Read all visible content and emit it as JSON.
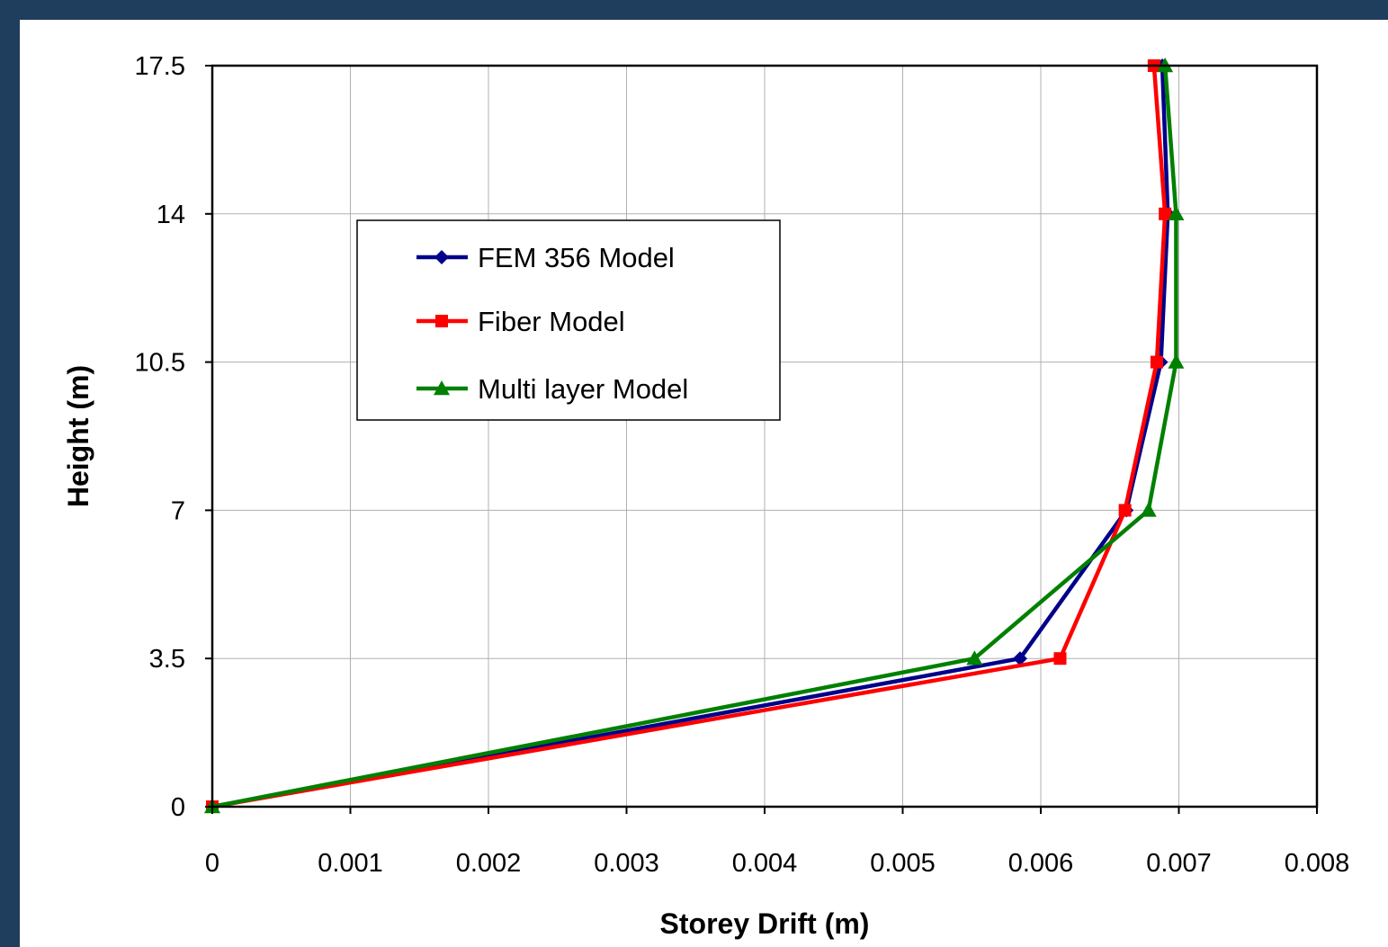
{
  "colors": {
    "background_border": "#1f3d5c",
    "plot_background": "#ffffff",
    "grid": "#b0b0b0",
    "axis": "#000000"
  },
  "chart_data": {
    "type": "line",
    "title": "",
    "xlabel": "Storey Drift (m)",
    "ylabel": "Height (m)",
    "xlim": [
      0,
      0.008
    ],
    "ylim": [
      0,
      17.5
    ],
    "x_ticks": [
      "0",
      "0.001",
      "0.002",
      "0.003",
      "0.004",
      "0.005",
      "0.006",
      "0.007",
      "0.008"
    ],
    "y_ticks": [
      "0",
      "3.5",
      "7",
      "10.5",
      "14",
      "17.5"
    ],
    "grid": true,
    "legend_position": "upper-left inside plot",
    "series": [
      {
        "name": "FEM 356 Model",
        "color": "#00008b",
        "marker": "diamond",
        "points": [
          [
            0,
            0
          ],
          [
            0.00585,
            3.5
          ],
          [
            0.00662,
            7
          ],
          [
            0.00687,
            10.5
          ],
          [
            0.00692,
            14
          ],
          [
            0.00688,
            17.5
          ]
        ]
      },
      {
        "name": "Fiber Model",
        "color": "#ff0000",
        "marker": "square",
        "points": [
          [
            0,
            0
          ],
          [
            0.00614,
            3.5
          ],
          [
            0.00661,
            7
          ],
          [
            0.00684,
            10.5
          ],
          [
            0.0069,
            14
          ],
          [
            0.00682,
            17.5
          ]
        ]
      },
      {
        "name": "Multi layer Model",
        "color": "#008000",
        "marker": "triangle",
        "points": [
          [
            0,
            0
          ],
          [
            0.00552,
            3.5
          ],
          [
            0.00678,
            7
          ],
          [
            0.00698,
            10.5
          ],
          [
            0.00698,
            14
          ],
          [
            0.0069,
            17.5
          ]
        ]
      }
    ]
  }
}
